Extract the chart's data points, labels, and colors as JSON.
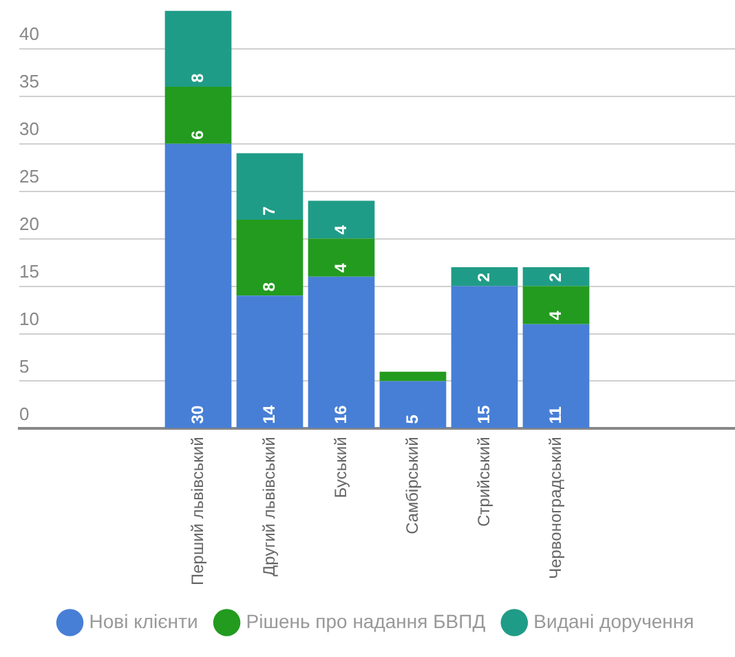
{
  "chart_data": {
    "type": "bar",
    "stacked": true,
    "categories": [
      null,
      null,
      "Перший львівський",
      "Другий львівський",
      "Буський",
      "Самбірський",
      "Стрийський",
      "Червоноградський",
      null,
      null
    ],
    "series": [
      {
        "name": "Нові клієнти",
        "color": "#477fd6",
        "values": [
          null,
          null,
          30,
          14,
          16,
          5,
          15,
          11,
          null,
          null
        ],
        "value_labels": [
          null,
          null,
          "30",
          "14",
          "16",
          "5",
          "15",
          "11",
          null,
          null
        ]
      },
      {
        "name": "Рішень про надання БВПД",
        "color": "#239b1f",
        "values": [
          null,
          null,
          6,
          8,
          4,
          1,
          null,
          4,
          null,
          null
        ],
        "value_labels": [
          null,
          null,
          "6",
          "8",
          "4",
          null,
          null,
          "4",
          null,
          null
        ]
      },
      {
        "name": "Видані доручення",
        "color": "#1f9c87",
        "values": [
          null,
          null,
          8,
          7,
          4,
          null,
          2,
          2,
          null,
          null
        ],
        "value_labels": [
          null,
          null,
          "8",
          "7",
          "4",
          null,
          "2",
          "2",
          null,
          null
        ]
      }
    ],
    "ylim": [
      0,
      44
    ],
    "yticks": [
      0,
      5,
      10,
      15,
      20,
      25,
      30,
      35,
      40
    ],
    "grid": "y",
    "legend": "bottom"
  }
}
